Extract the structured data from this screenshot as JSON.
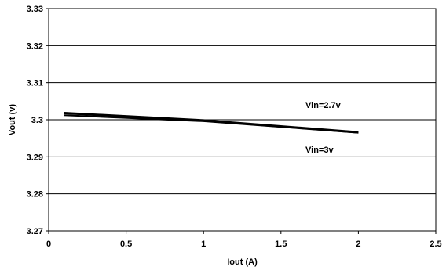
{
  "chart_data": {
    "type": "line",
    "title": "",
    "xlabel": "Iout (A)",
    "ylabel": "Vout (v)",
    "xlim": [
      0,
      2.5
    ],
    "ylim": [
      3.27,
      3.33
    ],
    "x_ticks": [
      "0",
      "0.5",
      "1",
      "1.5",
      "2",
      "2.5"
    ],
    "y_ticks": [
      "3.27",
      "3.28",
      "3.29",
      "3.3",
      "3.31",
      "3.32",
      "3.33"
    ],
    "grid": "horizontal",
    "legend": "none",
    "series": [
      {
        "name": "Vin=2.7v",
        "x": [
          0.1,
          1.0,
          2.0
        ],
        "y": [
          3.3018,
          3.2998,
          3.2966
        ]
      },
      {
        "name": "Vin=3v",
        "x": [
          0.1,
          1.0,
          2.0
        ],
        "y": [
          3.3012,
          3.2996,
          3.2965
        ]
      }
    ],
    "annotations": [
      {
        "text": "Vin=2.7v",
        "series": 0
      },
      {
        "text": "Vin=3v",
        "series": 1
      }
    ],
    "line_color": "#000000"
  }
}
